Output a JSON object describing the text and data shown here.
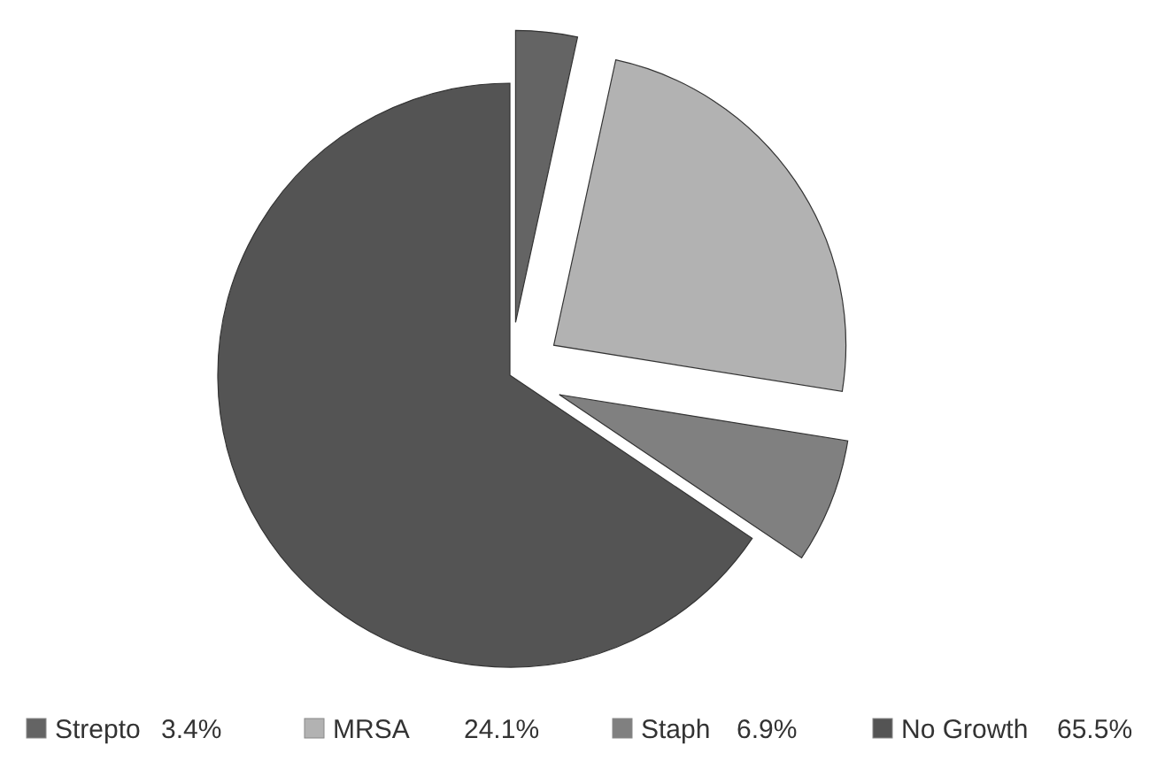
{
  "chart_data": {
    "type": "pie",
    "categories": [
      "Strepto",
      "MRSA",
      "Staph",
      "No Growth"
    ],
    "values": [
      3.4,
      24.1,
      6.9,
      65.5
    ],
    "value_labels": [
      "3.4%",
      "24.1%",
      "6.9%",
      "65.5%"
    ],
    "colors": [
      "#646464",
      "#b2b2b2",
      "#808080",
      "#545454"
    ],
    "legend": "bottom"
  }
}
